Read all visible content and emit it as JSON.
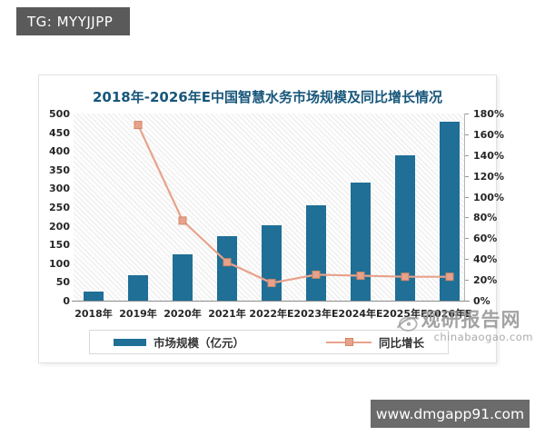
{
  "badges": {
    "tg": "TG: MYYJJPP",
    "site": "www.dmgapp91.com"
  },
  "watermark": {
    "name": "观研报告网",
    "domain": "chinabaogao.com"
  },
  "chart_data": {
    "type": "bar",
    "title": "2018年-2026年E中国智慧水务市场规模及同比增长情况",
    "categories": [
      "2018年",
      "2019年",
      "2020年",
      "2021年",
      "2022年E",
      "2023年E",
      "2024年E",
      "2025年E",
      "2026年E"
    ],
    "series": [
      {
        "name": "市场规模（亿元）",
        "type": "bar",
        "axis": "left",
        "values": [
          25,
          68,
          125,
          172,
          202,
          255,
          315,
          388,
          478
        ],
        "color": "#1f6f96"
      },
      {
        "name": "同比增长",
        "type": "line",
        "axis": "right",
        "unit": "%",
        "values": [
          null,
          169,
          77,
          37,
          17,
          25,
          24,
          23,
          23
        ],
        "color": "#e8a28c",
        "marker_border": "#cf8866"
      }
    ],
    "left_axis": {
      "min": 0,
      "max": 500,
      "step": 50
    },
    "right_axis": {
      "min": 0,
      "max": 180,
      "step": 20,
      "unit": "%"
    },
    "grid": false,
    "legend_position": "bottom",
    "plot_background": "diagonal-hatch"
  }
}
